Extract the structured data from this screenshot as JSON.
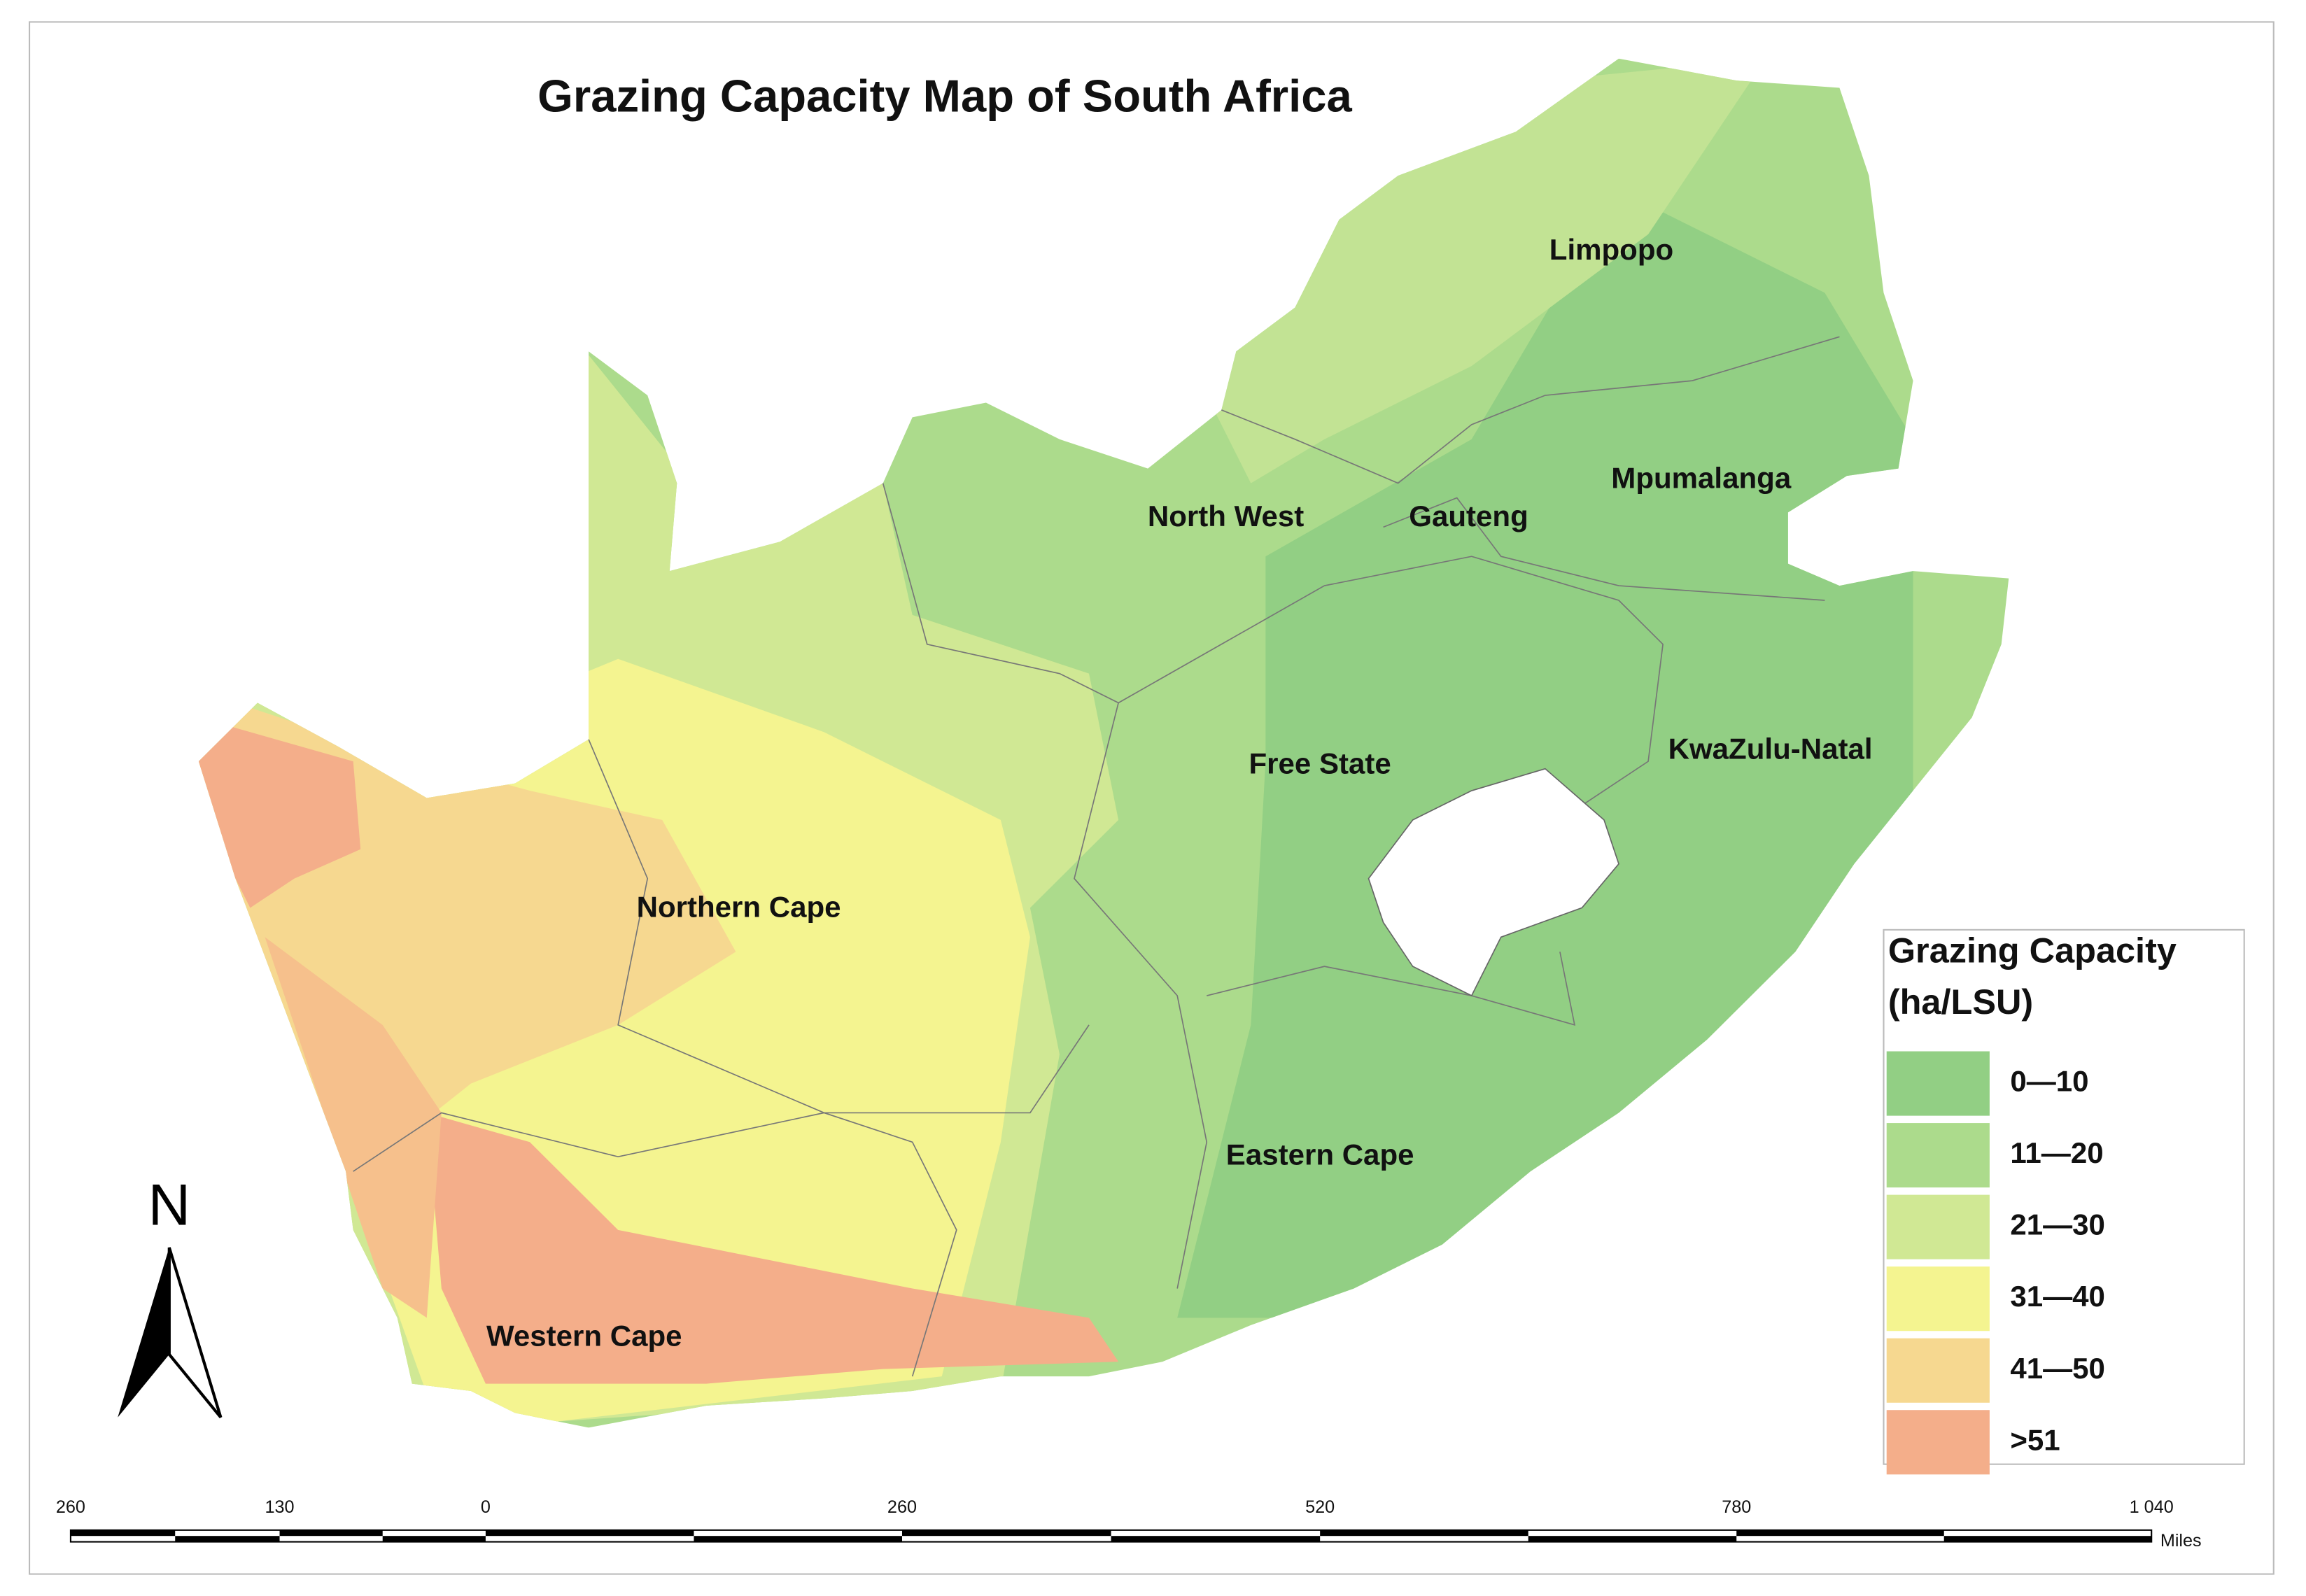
{
  "title": "Grazing Capacity Map of South Africa",
  "regions": [
    "Limpopo",
    "North West",
    "Gauteng",
    "Mpumalanga",
    "Free State",
    "KwaZulu-Natal",
    "Northern Cape",
    "Eastern Cape",
    "Western Cape"
  ],
  "legend": {
    "title": "Grazing Capacity",
    "units": "(ha/LSU)",
    "items": [
      {
        "label": "0—10",
        "color": "#92cf84"
      },
      {
        "label": "11—20",
        "color": "#acdb8c"
      },
      {
        "label": "21—30",
        "color": "#d0e894"
      },
      {
        "label": "31—40",
        "color": "#f4f490"
      },
      {
        "label": "41—50",
        "color": "#f6d890"
      },
      {
        "label": ">51",
        "color": "#f4ae8a"
      }
    ]
  },
  "north": "N",
  "scale_bar": {
    "labels": [
      "260",
      "130",
      "0",
      "260",
      "520",
      "780",
      "1 040"
    ],
    "unit": "Miles"
  }
}
